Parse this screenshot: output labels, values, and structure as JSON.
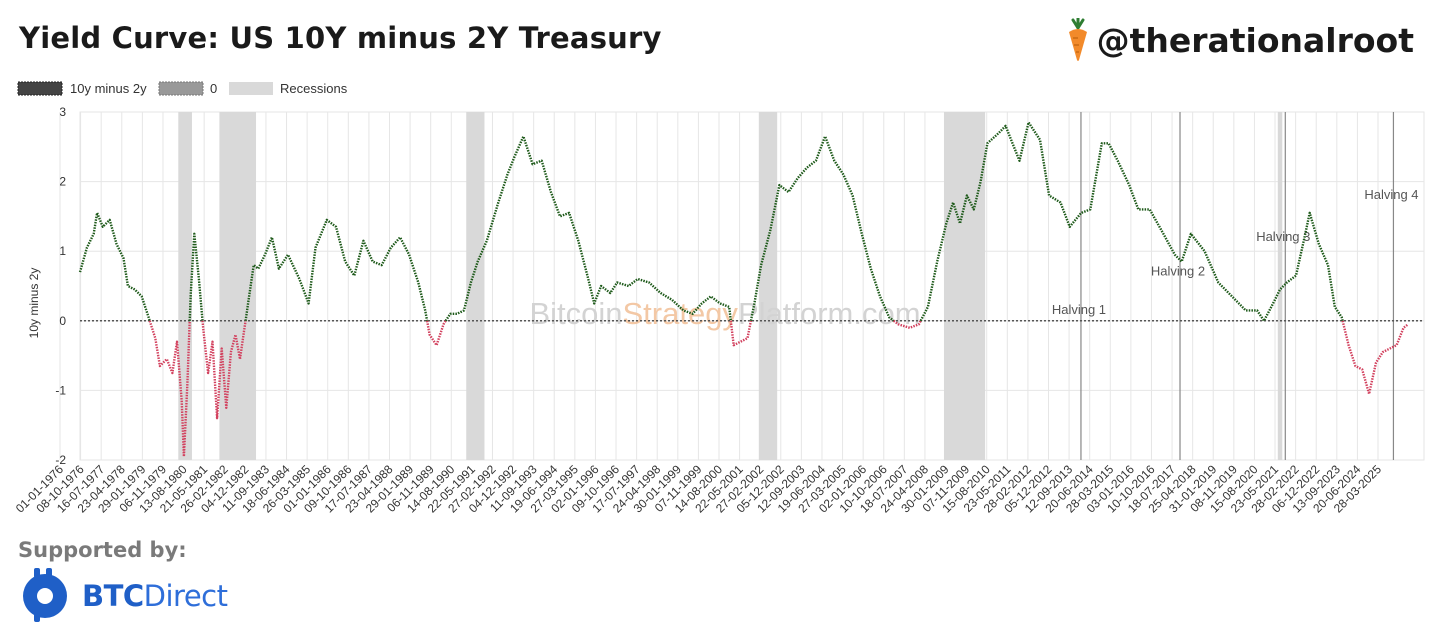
{
  "header": {
    "title": "Yield Curve: US 10Y minus 2Y Treasury",
    "handle": "@therationalroot"
  },
  "footer": {
    "supported_label": "Supported by:",
    "sponsor_part1": "BTC",
    "sponsor_part2": "Direct"
  },
  "watermark": {
    "part1": "Bitcoin",
    "part2": "Strategy",
    "part3": "Platform.com"
  },
  "colors": {
    "positive": "#1e5a1a",
    "negative": "#d2415e",
    "recession": "#d9d9d9",
    "zero_line": "#555555",
    "grid": "#e6e6e6",
    "handle_carrot": "#f28a2a",
    "sponsor": "#1f5fc7"
  },
  "chart_data": {
    "type": "line",
    "title": "",
    "xlabel": "",
    "ylabel": "10y minus 2y",
    "ylim": [
      -2,
      3
    ],
    "yticks": [
      -2,
      -1,
      0,
      1,
      2,
      3
    ],
    "xlim": [
      "1976-06-01",
      "2025-06-01"
    ],
    "grid": true,
    "legend_placement": "top-left",
    "legend": [
      {
        "label": "10y minus 2y",
        "style": "dotted-dark"
      },
      {
        "label": "0",
        "style": "dotted-gray"
      },
      {
        "label": "Recessions",
        "style": "band"
      }
    ],
    "x_tick_labels": [
      "01-01-1976",
      "08-10-1976",
      "16-07-1977",
      "23-04-1978",
      "29-01-1979",
      "06-11-1979",
      "13-08-1980",
      "21-05-1981",
      "26-02-1982",
      "04-12-1982",
      "11-09-1983",
      "18-06-1984",
      "26-03-1985",
      "01-01-1986",
      "09-10-1986",
      "17-07-1987",
      "23-04-1988",
      "29-01-1989",
      "06-11-1989",
      "14-08-1990",
      "22-05-1991",
      "27-02-1992",
      "04-12-1992",
      "11-09-1993",
      "19-06-1994",
      "27-03-1995",
      "02-01-1996",
      "09-10-1996",
      "17-07-1997",
      "24-04-1998",
      "30-01-1999",
      "07-11-1999",
      "14-08-2000",
      "22-05-2001",
      "27-02-2002",
      "05-12-2002",
      "12-09-2003",
      "19-06-2004",
      "27-03-2005",
      "02-01-2006",
      "10-10-2006",
      "18-07-2007",
      "24-04-2008",
      "30-01-2009",
      "07-11-2009",
      "15-08-2010",
      "23-05-2011",
      "28-02-2012",
      "05-12-2012",
      "12-09-2013",
      "20-06-2014",
      "28-03-2015",
      "03-01-2016",
      "10-10-2016",
      "18-07-2017",
      "25-04-2018",
      "31-01-2019",
      "08-11-2019",
      "15-08-2020",
      "23-05-2021",
      "28-02-2022",
      "06-12-2022",
      "13-09-2023",
      "20-06-2024",
      "28-03-2025"
    ],
    "recessions": [
      {
        "start": "1980-01-01",
        "end": "1980-07-01"
      },
      {
        "start": "1981-07-01",
        "end": "1982-11-01"
      },
      {
        "start": "1990-07-01",
        "end": "1991-03-01"
      },
      {
        "start": "2001-03-01",
        "end": "2001-11-01"
      },
      {
        "start": "2007-12-01",
        "end": "2009-06-01"
      },
      {
        "start": "2020-02-01",
        "end": "2020-04-01"
      }
    ],
    "annotations": [
      {
        "label": "Halving 1",
        "date": "2012-11-28",
        "label_value": 0.1
      },
      {
        "label": "Halving 2",
        "date": "2016-07-09",
        "label_value": 0.65
      },
      {
        "label": "Halving 3",
        "date": "2020-05-11",
        "label_value": 1.15
      },
      {
        "label": "Halving 4",
        "date": "2024-04-20",
        "label_value": 1.75
      }
    ],
    "series": [
      {
        "name": "10y minus 2y",
        "points": [
          [
            "1976-06-01",
            0.7
          ],
          [
            "1976-09-01",
            1.05
          ],
          [
            "1976-12-01",
            1.25
          ],
          [
            "1977-01-15",
            1.55
          ],
          [
            "1977-04-01",
            1.35
          ],
          [
            "1977-07-01",
            1.45
          ],
          [
            "1977-10-01",
            1.1
          ],
          [
            "1978-01-01",
            0.9
          ],
          [
            "1978-03-01",
            0.5
          ],
          [
            "1978-06-01",
            0.45
          ],
          [
            "1978-09-01",
            0.35
          ],
          [
            "1978-12-01",
            0.05
          ],
          [
            "1979-03-01",
            -0.25
          ],
          [
            "1979-05-01",
            -0.65
          ],
          [
            "1979-08-01",
            -0.55
          ],
          [
            "1979-10-15",
            -0.75
          ],
          [
            "1979-12-15",
            -0.3
          ],
          [
            "1980-02-15",
            -1.15
          ],
          [
            "1980-03-15",
            -1.95
          ],
          [
            "1980-05-01",
            -0.9
          ],
          [
            "1980-06-15",
            0.4
          ],
          [
            "1980-08-01",
            1.25
          ],
          [
            "1980-10-01",
            0.6
          ],
          [
            "1980-12-01",
            -0.15
          ],
          [
            "1981-02-01",
            -0.75
          ],
          [
            "1981-04-01",
            -0.3
          ],
          [
            "1981-06-01",
            -1.4
          ],
          [
            "1981-08-01",
            -0.4
          ],
          [
            "1981-10-01",
            -1.25
          ],
          [
            "1981-12-01",
            -0.45
          ],
          [
            "1982-02-01",
            -0.2
          ],
          [
            "1982-04-01",
            -0.55
          ],
          [
            "1982-06-01",
            -0.1
          ],
          [
            "1982-08-01",
            0.35
          ],
          [
            "1982-10-01",
            0.8
          ],
          [
            "1982-12-01",
            0.75
          ],
          [
            "1983-03-01",
            0.95
          ],
          [
            "1983-06-01",
            1.2
          ],
          [
            "1983-09-01",
            0.75
          ],
          [
            "1984-01-01",
            0.95
          ],
          [
            "1984-06-01",
            0.6
          ],
          [
            "1984-10-01",
            0.25
          ],
          [
            "1985-01-01",
            1.05
          ],
          [
            "1985-06-01",
            1.45
          ],
          [
            "1985-10-01",
            1.35
          ],
          [
            "1986-02-01",
            0.85
          ],
          [
            "1986-06-01",
            0.65
          ],
          [
            "1986-10-01",
            1.15
          ],
          [
            "1987-02-01",
            0.85
          ],
          [
            "1987-06-01",
            0.8
          ],
          [
            "1987-10-01",
            1.05
          ],
          [
            "1988-02-01",
            1.2
          ],
          [
            "1988-06-01",
            0.95
          ],
          [
            "1988-10-01",
            0.55
          ],
          [
            "1989-01-01",
            0.15
          ],
          [
            "1989-03-01",
            -0.2
          ],
          [
            "1989-06-01",
            -0.35
          ],
          [
            "1989-09-01",
            -0.05
          ],
          [
            "1989-12-01",
            0.1
          ],
          [
            "1990-03-01",
            0.1
          ],
          [
            "1990-06-01",
            0.15
          ],
          [
            "1990-09-01",
            0.55
          ],
          [
            "1990-12-01",
            0.85
          ],
          [
            "1991-04-01",
            1.15
          ],
          [
            "1991-09-01",
            1.7
          ],
          [
            "1992-01-01",
            2.1
          ],
          [
            "1992-04-01",
            2.35
          ],
          [
            "1992-08-01",
            2.65
          ],
          [
            "1992-12-01",
            2.25
          ],
          [
            "1993-04-01",
            2.3
          ],
          [
            "1993-08-01",
            1.85
          ],
          [
            "1993-12-01",
            1.5
          ],
          [
            "1994-04-01",
            1.55
          ],
          [
            "1994-08-01",
            1.15
          ],
          [
            "1994-12-01",
            0.65
          ],
          [
            "1995-03-01",
            0.25
          ],
          [
            "1995-06-01",
            0.5
          ],
          [
            "1995-10-01",
            0.4
          ],
          [
            "1996-01-01",
            0.55
          ],
          [
            "1996-06-01",
            0.5
          ],
          [
            "1996-10-01",
            0.6
          ],
          [
            "1997-03-01",
            0.55
          ],
          [
            "1997-08-01",
            0.4
          ],
          [
            "1998-01-01",
            0.3
          ],
          [
            "1998-06-01",
            0.15
          ],
          [
            "1998-10-01",
            0.1
          ],
          [
            "1999-02-01",
            0.25
          ],
          [
            "1999-06-01",
            0.35
          ],
          [
            "1999-10-01",
            0.25
          ],
          [
            "2000-02-01",
            0.2
          ],
          [
            "2000-04-01",
            -0.35
          ],
          [
            "2000-07-01",
            -0.3
          ],
          [
            "2000-10-01",
            -0.25
          ],
          [
            "2001-01-01",
            0.25
          ],
          [
            "2001-04-01",
            0.8
          ],
          [
            "2001-08-01",
            1.3
          ],
          [
            "2001-12-01",
            1.95
          ],
          [
            "2002-04-01",
            1.85
          ],
          [
            "2002-08-01",
            2.05
          ],
          [
            "2002-12-01",
            2.2
          ],
          [
            "2003-04-01",
            2.3
          ],
          [
            "2003-08-01",
            2.65
          ],
          [
            "2003-12-01",
            2.3
          ],
          [
            "2004-04-01",
            2.1
          ],
          [
            "2004-08-01",
            1.8
          ],
          [
            "2004-12-01",
            1.25
          ],
          [
            "2005-04-01",
            0.75
          ],
          [
            "2005-08-01",
            0.35
          ],
          [
            "2005-12-01",
            0.05
          ],
          [
            "2006-04-01",
            -0.05
          ],
          [
            "2006-09-01",
            -0.1
          ],
          [
            "2007-01-01",
            -0.05
          ],
          [
            "2007-05-01",
            0.2
          ],
          [
            "2007-09-01",
            0.85
          ],
          [
            "2008-01-01",
            1.4
          ],
          [
            "2008-04-01",
            1.7
          ],
          [
            "2008-07-01",
            1.4
          ],
          [
            "2008-10-01",
            1.8
          ],
          [
            "2009-01-01",
            1.6
          ],
          [
            "2009-04-01",
            2.0
          ],
          [
            "2009-07-01",
            2.55
          ],
          [
            "2009-12-01",
            2.7
          ],
          [
            "2010-03-01",
            2.8
          ],
          [
            "2010-06-01",
            2.55
          ],
          [
            "2010-09-01",
            2.3
          ],
          [
            "2011-01-01",
            2.85
          ],
          [
            "2011-06-01",
            2.6
          ],
          [
            "2011-10-01",
            1.8
          ],
          [
            "2012-03-01",
            1.7
          ],
          [
            "2012-07-01",
            1.35
          ],
          [
            "2012-12-01",
            1.55
          ],
          [
            "2013-04-01",
            1.6
          ],
          [
            "2013-09-01",
            2.55
          ],
          [
            "2013-12-01",
            2.55
          ],
          [
            "2014-04-01",
            2.3
          ],
          [
            "2014-09-01",
            1.95
          ],
          [
            "2015-01-01",
            1.6
          ],
          [
            "2015-06-01",
            1.6
          ],
          [
            "2015-12-01",
            1.25
          ],
          [
            "2016-05-01",
            0.95
          ],
          [
            "2016-08-01",
            0.85
          ],
          [
            "2016-12-01",
            1.25
          ],
          [
            "2017-06-01",
            1.0
          ],
          [
            "2017-12-01",
            0.55
          ],
          [
            "2018-06-01",
            0.35
          ],
          [
            "2018-12-01",
            0.15
          ],
          [
            "2019-05-01",
            0.15
          ],
          [
            "2019-08-01",
            0.0
          ],
          [
            "2019-12-01",
            0.25
          ],
          [
            "2020-03-01",
            0.45
          ],
          [
            "2020-06-01",
            0.55
          ],
          [
            "2020-10-01",
            0.65
          ],
          [
            "2021-02-01",
            1.25
          ],
          [
            "2021-04-01",
            1.55
          ],
          [
            "2021-08-01",
            1.1
          ],
          [
            "2021-12-01",
            0.8
          ],
          [
            "2022-03-01",
            0.2
          ],
          [
            "2022-06-01",
            0.05
          ],
          [
            "2022-09-01",
            -0.35
          ],
          [
            "2022-12-01",
            -0.65
          ],
          [
            "2023-03-01",
            -0.7
          ],
          [
            "2023-06-01",
            -1.05
          ],
          [
            "2023-09-01",
            -0.6
          ],
          [
            "2023-12-01",
            -0.45
          ],
          [
            "2024-03-01",
            -0.4
          ],
          [
            "2024-06-01",
            -0.35
          ],
          [
            "2024-09-01",
            -0.1
          ],
          [
            "2024-11-01",
            -0.05
          ]
        ]
      },
      {
        "name": "0",
        "values_y": 0
      }
    ]
  }
}
